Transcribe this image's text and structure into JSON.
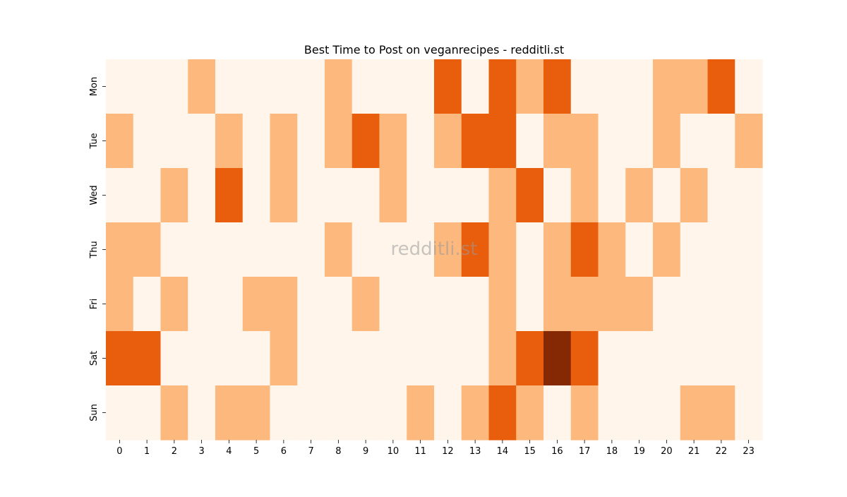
{
  "chart_data": {
    "type": "heatmap",
    "title": "Best Time to Post on veganrecipes - redditli.st",
    "watermark": "redditli.st",
    "x_labels": [
      "0",
      "1",
      "2",
      "3",
      "4",
      "5",
      "6",
      "7",
      "8",
      "9",
      "10",
      "11",
      "12",
      "13",
      "14",
      "15",
      "16",
      "17",
      "18",
      "19",
      "20",
      "21",
      "22",
      "23"
    ],
    "y_labels": [
      "Mon",
      "Tue",
      "Wed",
      "Thu",
      "Fri",
      "Sat",
      "Sun"
    ],
    "values": [
      [
        0,
        0,
        0,
        1,
        0,
        0,
        0,
        0,
        1,
        0,
        0,
        0,
        2,
        0,
        2,
        1,
        2,
        0,
        0,
        0,
        1,
        1,
        2,
        0
      ],
      [
        1,
        0,
        0,
        0,
        1,
        0,
        1,
        0,
        1,
        2,
        1,
        0,
        1,
        2,
        2,
        0,
        1,
        1,
        0,
        0,
        1,
        0,
        0,
        1
      ],
      [
        0,
        0,
        1,
        0,
        2,
        0,
        1,
        0,
        0,
        0,
        1,
        0,
        0,
        0,
        1,
        2,
        0,
        1,
        0,
        1,
        0,
        1,
        0,
        0
      ],
      [
        1,
        1,
        0,
        0,
        0,
        0,
        0,
        0,
        1,
        0,
        0,
        0,
        1,
        2,
        1,
        0,
        1,
        2,
        1,
        0,
        1,
        0,
        0,
        0
      ],
      [
        1,
        0,
        1,
        0,
        0,
        1,
        1,
        0,
        0,
        1,
        0,
        0,
        0,
        0,
        1,
        0,
        1,
        1,
        1,
        1,
        0,
        0,
        0,
        0
      ],
      [
        2,
        2,
        0,
        0,
        0,
        0,
        1,
        0,
        0,
        0,
        0,
        0,
        0,
        0,
        1,
        2,
        3,
        2,
        0,
        0,
        0,
        0,
        0,
        0
      ],
      [
        0,
        0,
        1,
        0,
        1,
        1,
        0,
        0,
        0,
        0,
        0,
        1,
        0,
        1,
        2,
        1,
        0,
        1,
        0,
        0,
        0,
        1,
        1,
        0
      ]
    ],
    "colormap": [
      "#fff5eb",
      "#fdb97d",
      "#e95e0d",
      "#842904"
    ],
    "grid": false,
    "legend": "none"
  }
}
